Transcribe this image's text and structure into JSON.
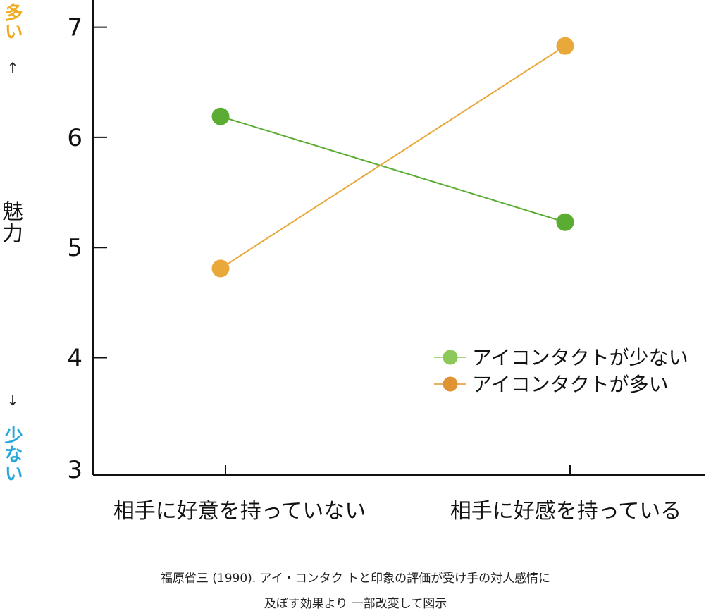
{
  "chart_data": {
    "type": "line",
    "categories": [
      "相手に好意を持っていない",
      "相手に好感を持っている"
    ],
    "series": [
      {
        "name": "アイコンタクトが少ない",
        "values": [
          6.19,
          5.23
        ],
        "color": "#5aac33",
        "legend_color": "#8cc85a"
      },
      {
        "name": "アイコンタクトが多い",
        "values": [
          4.81,
          6.83
        ],
        "color": "#e9a83a",
        "legend_color": "#df9333"
      }
    ],
    "yticks": [
      "3",
      "4",
      "5",
      "6",
      "7"
    ],
    "ylim": [
      3,
      7.25
    ],
    "y_axis_break": true,
    "ylabel": "魅力",
    "y_high_label": "多い",
    "y_low_label": "少ない",
    "y_high_color": "#f0ab1e",
    "y_low_color": "#27a7dc",
    "arrow_up": "↑",
    "arrow_down": "↓",
    "legend_position": "lower-right",
    "grid": false
  },
  "source": {
    "line1": "福原省三 (1990). アイ・コンタク トと印象の評価が受け手の対人感情に",
    "line2": "及ぼす効果より 一部改変して図示"
  }
}
